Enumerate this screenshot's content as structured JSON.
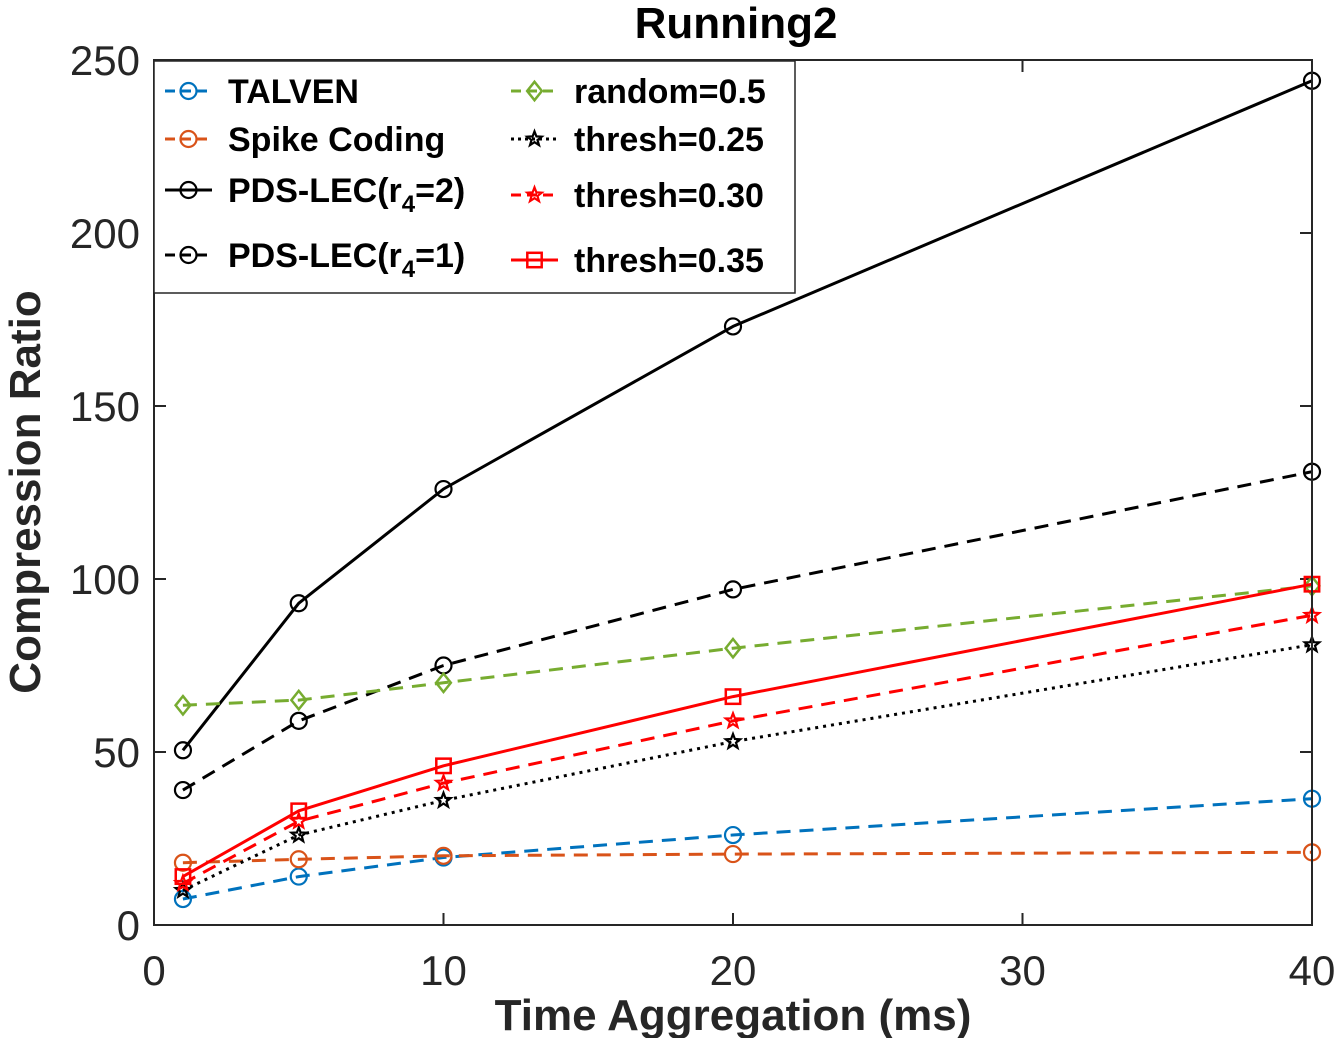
{
  "chart_data": {
    "type": "line",
    "title": "Running2",
    "xlabel": "Time Aggregation (ms)",
    "ylabel": "Compression Ratio",
    "xlim": [
      0,
      40
    ],
    "ylim": [
      0,
      250
    ],
    "xticks": [
      0,
      10,
      20,
      30,
      40
    ],
    "yticks": [
      0,
      50,
      100,
      150,
      200,
      250
    ],
    "xtick_labels": [
      "0",
      "10",
      "20",
      "30",
      "40"
    ],
    "ytick_labels": [
      "0",
      "50",
      "100",
      "150",
      "200",
      "250"
    ],
    "x": [
      1,
      5,
      10,
      20,
      40
    ],
    "legend_position": "top-left",
    "series": [
      {
        "name": "TALVEN",
        "color": "#0072BD",
        "dash": "dashed",
        "marker": "circle",
        "values": [
          7.5,
          14,
          19.5,
          26,
          36.5
        ]
      },
      {
        "name": "Spike Coding",
        "color": "#D95319",
        "dash": "dashed",
        "marker": "circle",
        "values": [
          18,
          19,
          20,
          20.5,
          21
        ]
      },
      {
        "name": "PDS-LEC(r",
        "name_sub": "4",
        "name_suffix": "=2)",
        "color": "#000000",
        "dash": "solid",
        "marker": "circle",
        "values": [
          50.5,
          93,
          126,
          173,
          244
        ]
      },
      {
        "name": "PDS-LEC(r",
        "name_sub": "4",
        "name_suffix": "=1)",
        "color": "#000000",
        "dash": "dashed",
        "marker": "circle",
        "values": [
          39,
          59,
          75,
          97,
          131
        ]
      },
      {
        "name": "random=0.5",
        "color": "#77AC30",
        "dash": "dashed",
        "marker": "diamond",
        "values": [
          63.5,
          65,
          70,
          80,
          98
        ]
      },
      {
        "name": "thresh=0.25",
        "color": "#000000",
        "dash": "dotted",
        "marker": "star",
        "values": [
          10,
          26,
          36,
          53,
          81
        ]
      },
      {
        "name": "thresh=0.30",
        "color": "#FF0000",
        "dash": "dashed",
        "marker": "star",
        "values": [
          12,
          30,
          41,
          59,
          89.5
        ]
      },
      {
        "name": "thresh=0.35",
        "color": "#FF0000",
        "dash": "solid",
        "marker": "square",
        "values": [
          14,
          33,
          46,
          66,
          98.5
        ]
      }
    ]
  }
}
